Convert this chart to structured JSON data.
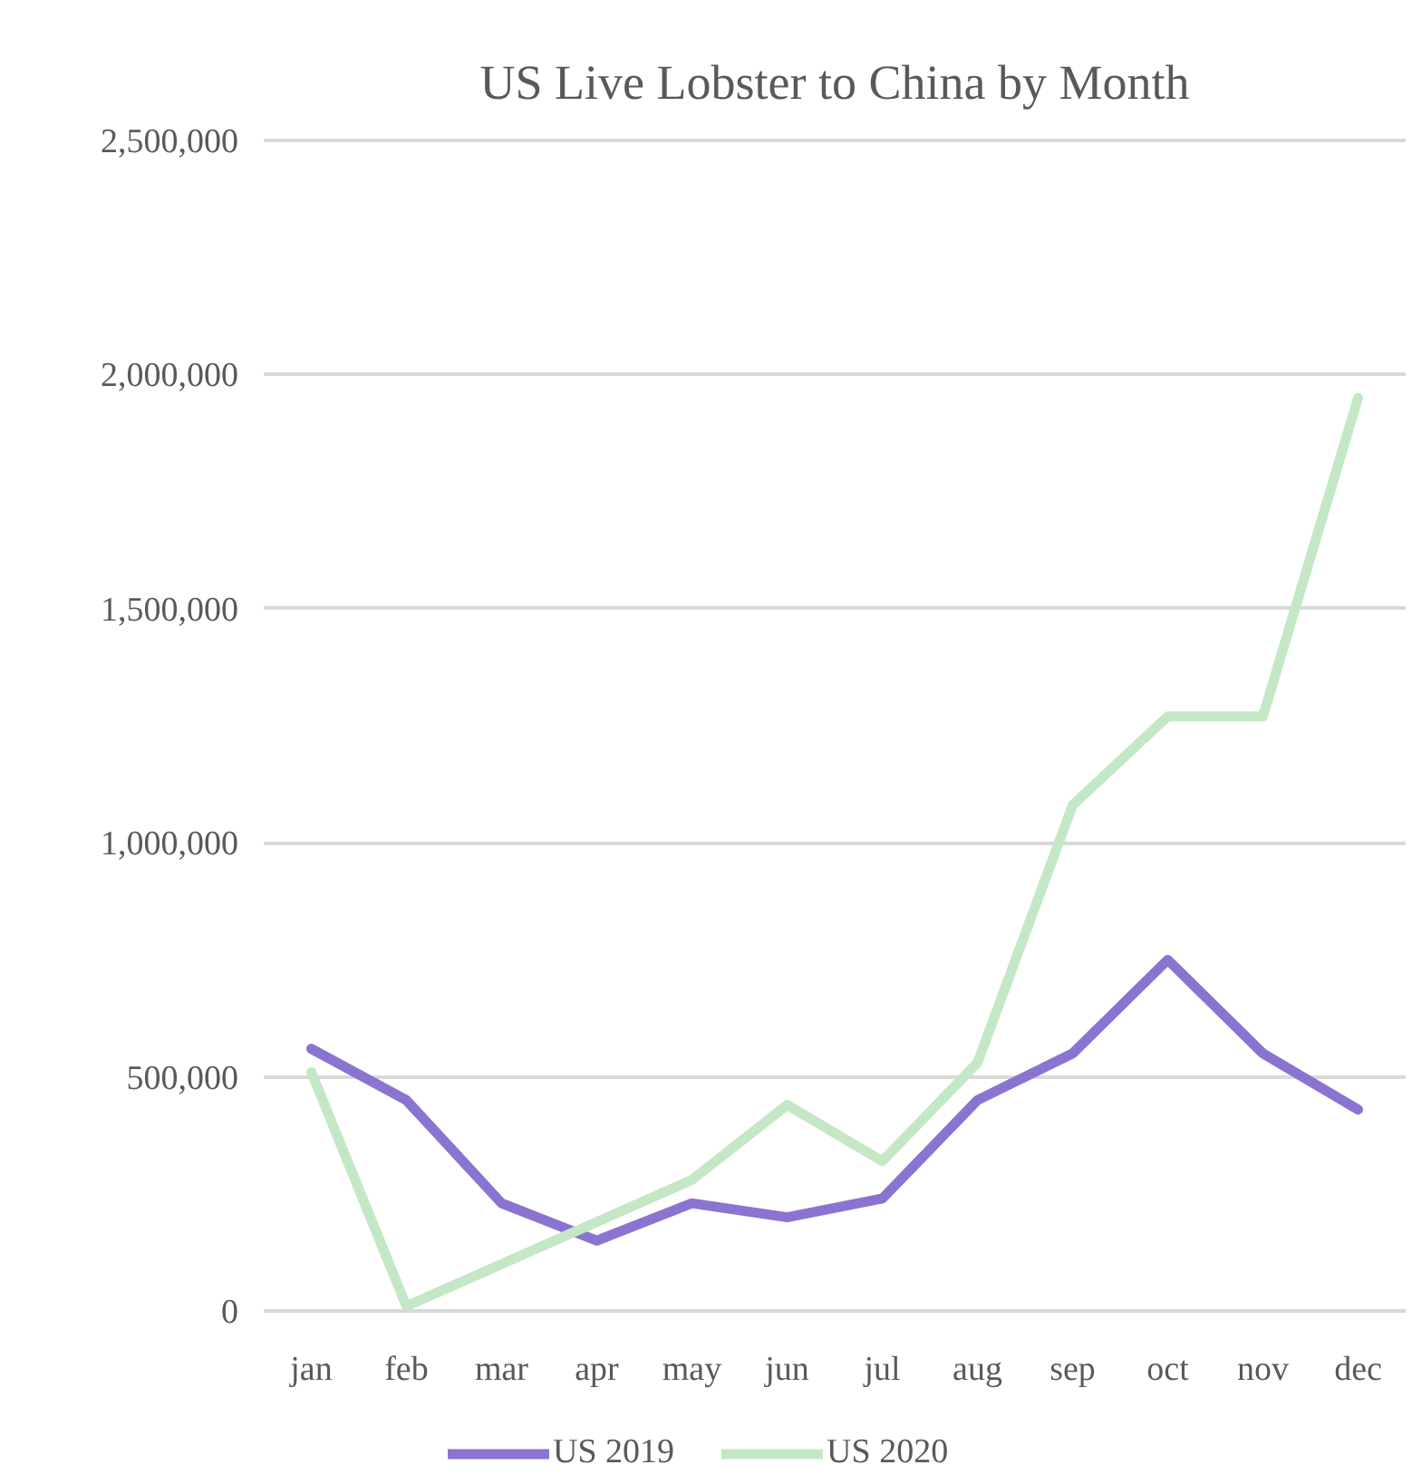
{
  "chart_data": {
    "type": "line",
    "title": "US Live Lobster to China by Month",
    "categories": [
      "jan",
      "feb",
      "mar",
      "apr",
      "may",
      "jun",
      "jul",
      "aug",
      "sep",
      "oct",
      "nov",
      "dec"
    ],
    "series": [
      {
        "name": "US 2019",
        "color": "#8b73d1",
        "values": [
          560000,
          450000,
          230000,
          150000,
          230000,
          200000,
          240000,
          450000,
          550000,
          750000,
          550000,
          430000
        ]
      },
      {
        "name": "US 2020",
        "color": "#c4e8c6",
        "values": [
          510000,
          10000,
          100000,
          190000,
          280000,
          440000,
          320000,
          530000,
          1080000,
          1270000,
          1270000,
          1950000
        ]
      }
    ],
    "ylim": [
      0,
      2500000
    ],
    "yticks": [
      {
        "value": 0,
        "label": "0"
      },
      {
        "value": 500000,
        "label": "500,000"
      },
      {
        "value": 1000000,
        "label": "1,000,000"
      },
      {
        "value": 1500000,
        "label": "1,500,000"
      },
      {
        "value": 2000000,
        "label": "2,000,000"
      },
      {
        "value": 2500000,
        "label": "2,500,000"
      }
    ],
    "grid": "y",
    "legend": "bottom",
    "line_style": "solid"
  }
}
